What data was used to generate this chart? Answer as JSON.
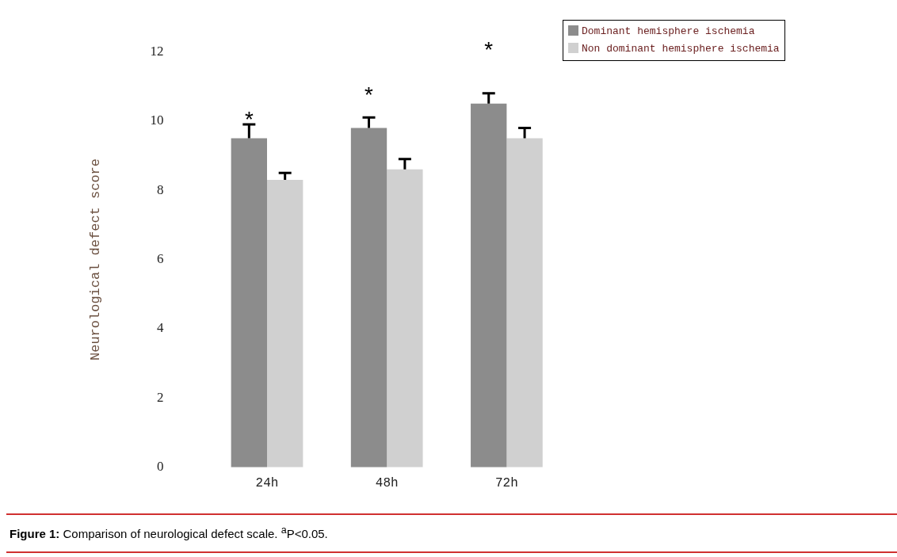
{
  "chart_data": {
    "type": "bar",
    "ylabel": "Neurological defect score",
    "categories": [
      "24h",
      "48h",
      "72h"
    ],
    "series": [
      {
        "name": "Dominant hemisphere ischemia",
        "color": "#8c8c8c",
        "values": [
          9.5,
          9.8,
          10.5
        ],
        "errors": [
          [
            9.5,
            9.9
          ],
          [
            9.8,
            10.1
          ],
          [
            10.5,
            10.8
          ]
        ]
      },
      {
        "name": "Non dominant hemisphere ischemia",
        "color": "#d0d0d0",
        "values": [
          8.3,
          8.6,
          9.5
        ],
        "errors": [
          [
            8.3,
            8.5
          ],
          [
            8.6,
            8.9
          ],
          [
            9.5,
            9.8
          ]
        ]
      }
    ],
    "ylim": [
      0,
      12
    ],
    "yticks": [
      0,
      2,
      4,
      6,
      8,
      10,
      12
    ],
    "grid": false,
    "legend": "top right",
    "annotations": [
      "*",
      "*",
      "*",
      "Figure 1: Comparison of neurological defect scale. $^{a}$P<0.05."
    ]
  }
}
